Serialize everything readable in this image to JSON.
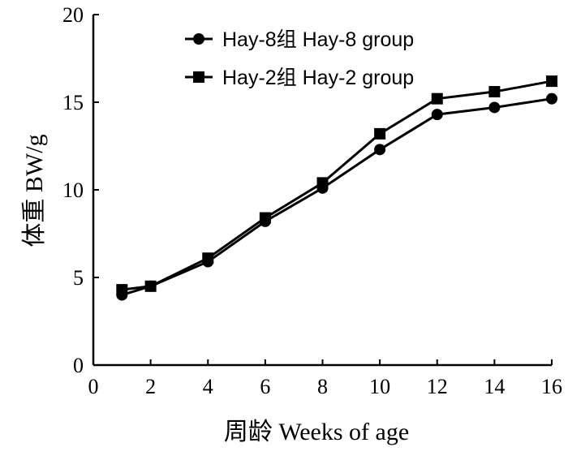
{
  "chart_data": {
    "type": "line",
    "x": [
      1,
      2,
      4,
      6,
      8,
      10,
      12,
      14,
      16
    ],
    "xlim": [
      0,
      16
    ],
    "ylim": [
      0,
      20
    ],
    "xticks": [
      "0",
      "2",
      "4",
      "6",
      "8",
      "10",
      "12",
      "14",
      "16"
    ],
    "yticks": [
      "0",
      "5",
      "10",
      "15",
      "20"
    ],
    "xlabel": "周龄  Weeks of age",
    "ylabel": "体重  BW/g",
    "grid": false,
    "legend_position": "top-right",
    "series": [
      {
        "name": "Hay-8组 Hay-8 group",
        "marker": "circle",
        "color": "#000000",
        "values": [
          4.0,
          4.5,
          5.9,
          8.2,
          10.1,
          12.3,
          14.3,
          14.7,
          15.2
        ]
      },
      {
        "name": "Hay-2组 Hay-2 group",
        "marker": "square",
        "color": "#000000",
        "values": [
          4.3,
          4.5,
          6.1,
          8.4,
          10.4,
          13.2,
          15.2,
          15.6,
          16.2
        ]
      }
    ]
  }
}
